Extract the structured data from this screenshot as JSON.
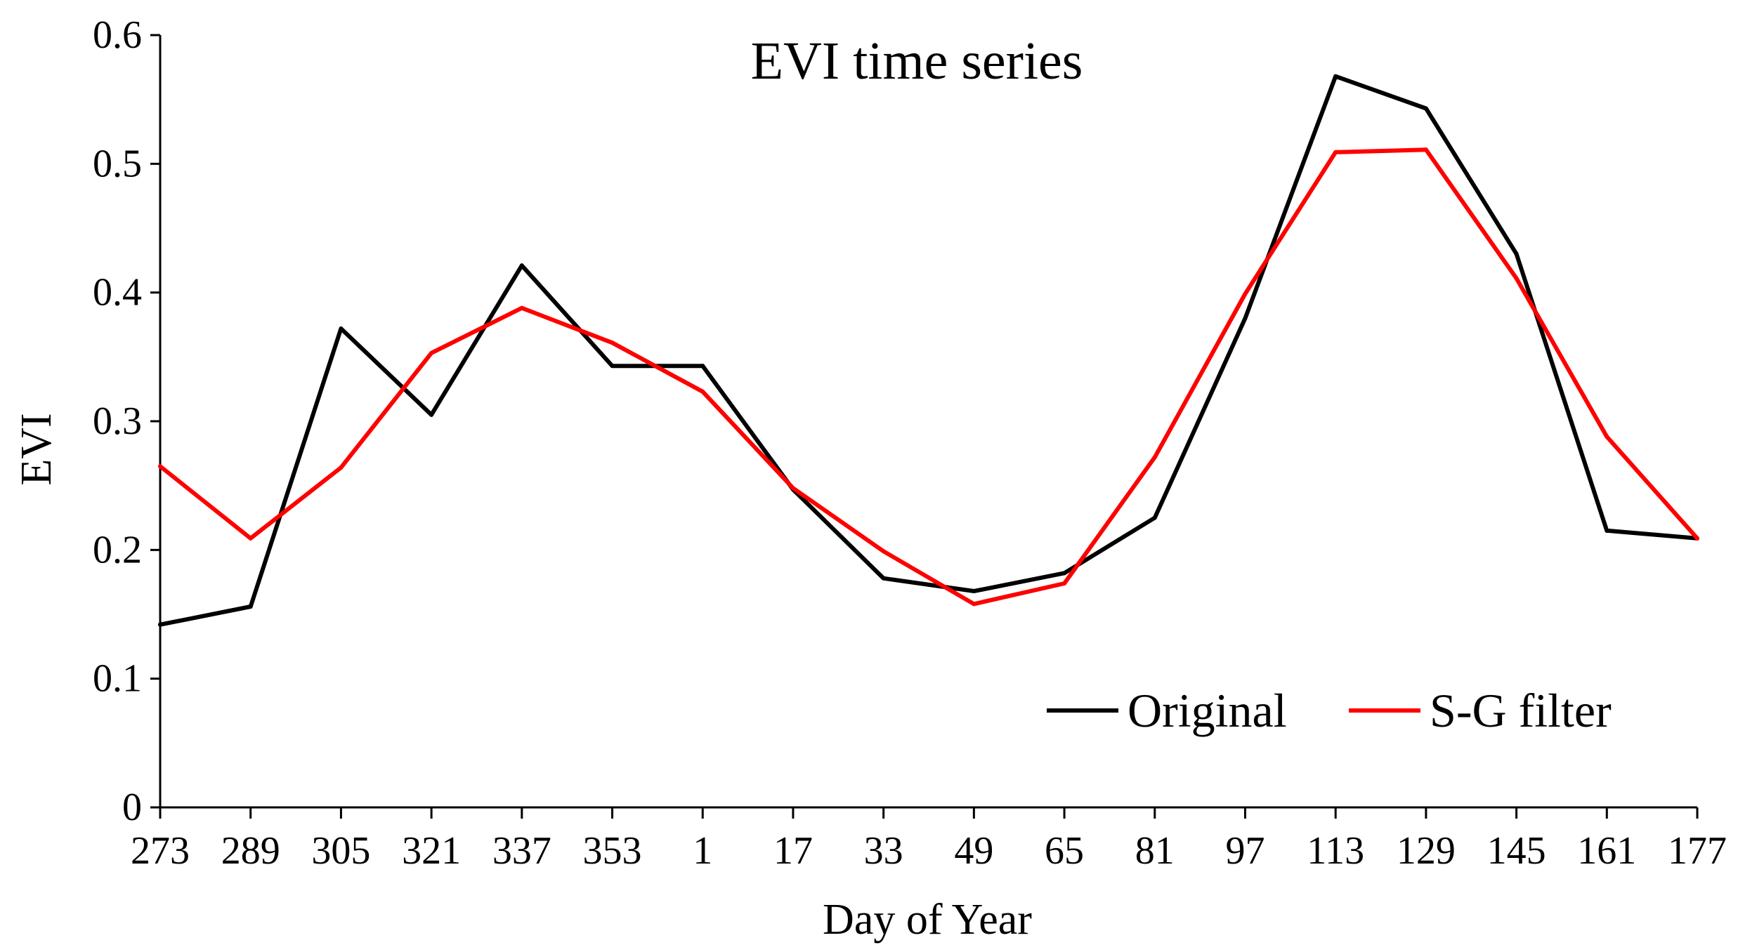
{
  "chart_data": {
    "type": "line",
    "title": "EVI time series",
    "xlabel": "Day of Year",
    "ylabel": "EVI",
    "categories": [
      "273",
      "289",
      "305",
      "321",
      "337",
      "353",
      "1",
      "17",
      "33",
      "49",
      "65",
      "81",
      "97",
      "113",
      "129",
      "145",
      "161",
      "177"
    ],
    "ylim": [
      0,
      0.6
    ],
    "yticks": [
      "0",
      "0.1",
      "0.2",
      "0.3",
      "0.4",
      "0.5",
      "0.6"
    ],
    "grid": false,
    "legend_position": "bottom-right",
    "series": [
      {
        "name": "Original",
        "color": "#000000",
        "values": [
          0.142,
          0.156,
          0.372,
          0.305,
          0.421,
          0.343,
          0.343,
          0.247,
          0.178,
          0.168,
          0.182,
          0.225,
          0.38,
          0.568,
          0.543,
          0.43,
          0.215,
          0.209
        ]
      },
      {
        "name": "S-G filter",
        "color": "#ff0000",
        "values": [
          0.265,
          0.209,
          0.264,
          0.353,
          0.388,
          0.361,
          0.323,
          0.248,
          0.199,
          0.158,
          0.174,
          0.272,
          0.399,
          0.509,
          0.511,
          0.411,
          0.288,
          0.209
        ]
      }
    ]
  }
}
